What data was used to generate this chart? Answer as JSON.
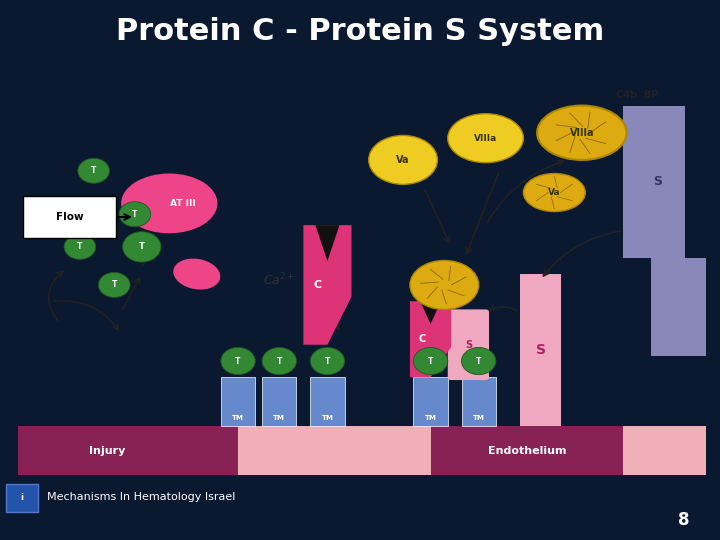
{
  "title": "Protein C - Protein S System",
  "title_bg_color": "#1166FF",
  "title_text_color": "#FFFFFF",
  "title_fontsize": 22,
  "slide_bg_color": "#0A1830",
  "content_bg_color": "#E0EEF0",
  "content_border_color": "#4488BB",
  "footer_text": "Mechanisms In Hematology Israel",
  "footer_text_color": "#FFFFFF",
  "footer_fontsize": 8,
  "page_number": "8",
  "page_number_color": "#FFFFFF",
  "page_number_fontsize": 12,
  "d": {
    "floor_injury_color": "#882255",
    "floor_endo_color": "#882255",
    "floor_mid_color": "#F0B0B8",
    "floor_right_color": "#F0B0B8",
    "tm_color": "#6688CC",
    "t_color": "#449944",
    "t_hex_color": "#338833",
    "protein_c_color": "#DD3377",
    "at_iii_color": "#EE4488",
    "yellow_color": "#EECC22",
    "yellow_cracked": "#DDAA11",
    "s_pink": "#F0A8C0",
    "s_blue": "#9999CC",
    "flow_box_color": "#FFFFFF",
    "flow_text_color": "#000000",
    "arrow_color": "#222222",
    "ca2_color": "#333333",
    "c4b_color": "#333333",
    "black": "#111111"
  }
}
